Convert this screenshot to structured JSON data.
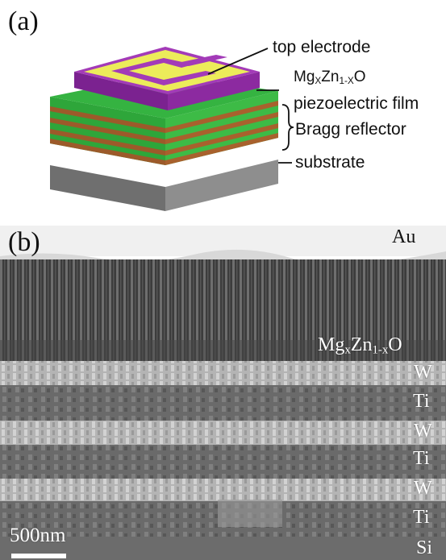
{
  "panel_a": {
    "label": "(a)",
    "callouts": {
      "top_electrode": "top electrode",
      "film_base_1": "Mg",
      "film_sub_1": "X",
      "film_base_2": "Zn",
      "film_sub_2": "1-X",
      "film_base_3": "O",
      "film_line2": "piezoelectric film",
      "bragg": "Bragg reflector",
      "substrate": "substrate"
    },
    "colors": {
      "electrode": "#ecec5a",
      "film": "#8c2aa0",
      "bragg_green": "#2ea63a",
      "bragg_brown": "#9c5a2a",
      "substrate": "#8e8e8e"
    }
  },
  "panel_b": {
    "label": "(b)",
    "layers": {
      "au": "Au",
      "film_base_1": "Mg",
      "film_sub_1": "x",
      "film_base_2": "Zn",
      "film_sub_2": "1-x",
      "film_base_3": "O",
      "w1": "W",
      "ti1": "Ti",
      "w2": "W",
      "ti2": "Ti",
      "w3": "W",
      "ti3": "Ti",
      "si": "Si"
    },
    "scale_bar": "500nm"
  }
}
